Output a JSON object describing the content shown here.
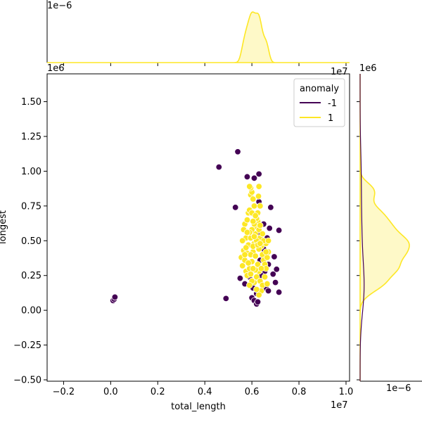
{
  "chart_data": {
    "type": "scatter",
    "xlabel": "total_length",
    "ylabel": "longest",
    "xlim": [
      -2700000,
      10150000
    ],
    "ylim": [
      -510000,
      1700000
    ],
    "x_ticks": [
      -2000000,
      0,
      2000000,
      4000000,
      6000000,
      8000000,
      10000000
    ],
    "x_tick_labels": [
      "−0.2",
      "0.0",
      "0.2",
      "0.4",
      "0.6",
      "0.8",
      "1.0"
    ],
    "x_offset_label": "1e7",
    "y_ticks": [
      -500000,
      -250000,
      0,
      250000,
      500000,
      750000,
      1000000,
      1250000,
      1500000
    ],
    "y_tick_labels": [
      "−0.50",
      "−0.25",
      "0.00",
      "0.25",
      "0.50",
      "0.75",
      "1.00",
      "1.25",
      "1.50"
    ],
    "y_offset_label": "1e6",
    "top_marginal_offset_label": "1e−6",
    "top_marginal_axis_offset_label": "1e7",
    "right_marginal_offset_label": "1e6",
    "right_marginal_axis_offset_label": "1e−6",
    "legend": {
      "title": "anomaly",
      "placement": "top-right",
      "entries": [
        {
          "label": "-1",
          "color": "#440154"
        },
        {
          "label": "1",
          "color": "#fde725"
        }
      ]
    },
    "series": [
      {
        "name": "-1",
        "color": "#440154",
        "points": [
          [
            100000,
            70000
          ],
          [
            150000,
            80000
          ],
          [
            180000,
            95000
          ],
          [
            4600000,
            1030000
          ],
          [
            5400000,
            1140000
          ],
          [
            5800000,
            960000
          ],
          [
            6100000,
            950000
          ],
          [
            6300000,
            980000
          ],
          [
            6300000,
            780000
          ],
          [
            6800000,
            740000
          ],
          [
            5300000,
            740000
          ],
          [
            6500000,
            620000
          ],
          [
            6750000,
            590000
          ],
          [
            7150000,
            575000
          ],
          [
            6300000,
            540000
          ],
          [
            6650000,
            520000
          ],
          [
            5500000,
            230000
          ],
          [
            4900000,
            85000
          ],
          [
            6000000,
            90000
          ],
          [
            6100000,
            70000
          ],
          [
            6200000,
            45000
          ],
          [
            6250000,
            60000
          ],
          [
            6600000,
            160000
          ],
          [
            7150000,
            130000
          ],
          [
            6700000,
            140000
          ],
          [
            7000000,
            200000
          ],
          [
            6900000,
            260000
          ],
          [
            7050000,
            295000
          ],
          [
            6950000,
            385000
          ],
          [
            6700000,
            330000
          ],
          [
            6550000,
            280000
          ],
          [
            6400000,
            250000
          ],
          [
            5900000,
            240000
          ],
          [
            5700000,
            190000
          ],
          [
            6050000,
            160000
          ],
          [
            6200000,
            120000
          ],
          [
            6350000,
            360000
          ],
          [
            6500000,
            440000
          ]
        ]
      },
      {
        "name": "1",
        "color": "#fde725",
        "points": [
          [
            5700000,
            620000
          ],
          [
            5800000,
            650000
          ],
          [
            5850000,
            700000
          ],
          [
            5900000,
            720000
          ],
          [
            5950000,
            830000
          ],
          [
            6000000,
            850000
          ],
          [
            5950000,
            880000
          ],
          [
            5900000,
            890000
          ],
          [
            6050000,
            800000
          ],
          [
            6300000,
            890000
          ],
          [
            6280000,
            820000
          ],
          [
            6350000,
            750000
          ],
          [
            6250000,
            700000
          ],
          [
            5750000,
            520000
          ],
          [
            5600000,
            500000
          ],
          [
            5650000,
            430000
          ],
          [
            5550000,
            380000
          ],
          [
            5600000,
            320000
          ],
          [
            5750000,
            280000
          ],
          [
            5800000,
            250000
          ],
          [
            5900000,
            300000
          ],
          [
            6000000,
            350000
          ],
          [
            6050000,
            420000
          ],
          [
            6100000,
            480000
          ],
          [
            6150000,
            550000
          ],
          [
            6200000,
            600000
          ],
          [
            6250000,
            640000
          ],
          [
            6300000,
            580000
          ],
          [
            6350000,
            520000
          ],
          [
            6400000,
            460000
          ],
          [
            6450000,
            400000
          ],
          [
            6500000,
            360000
          ],
          [
            6550000,
            330000
          ],
          [
            6600000,
            300000
          ],
          [
            6650000,
            380000
          ],
          [
            6700000,
            420000
          ],
          [
            6600000,
            480000
          ],
          [
            6500000,
            500000
          ],
          [
            6450000,
            550000
          ],
          [
            6350000,
            610000
          ],
          [
            6200000,
            660000
          ],
          [
            6100000,
            620000
          ],
          [
            6000000,
            580000
          ],
          [
            5950000,
            520000
          ],
          [
            5850000,
            470000
          ],
          [
            5800000,
            410000
          ],
          [
            5700000,
            360000
          ],
          [
            5850000,
            340000
          ],
          [
            5950000,
            400000
          ],
          [
            6050000,
            460000
          ],
          [
            6150000,
            390000
          ],
          [
            6250000,
            330000
          ],
          [
            6300000,
            280000
          ],
          [
            6200000,
            240000
          ],
          [
            6100000,
            200000
          ],
          [
            6000000,
            210000
          ],
          [
            5950000,
            260000
          ],
          [
            6150000,
            290000
          ],
          [
            6350000,
            210000
          ],
          [
            6450000,
            180000
          ],
          [
            6400000,
            140000
          ],
          [
            6300000,
            110000
          ],
          [
            6200000,
            150000
          ],
          [
            6050000,
            300000
          ],
          [
            5900000,
            560000
          ],
          [
            6550000,
            240000
          ],
          [
            6650000,
            190000
          ],
          [
            5650000,
            580000
          ],
          [
            6700000,
            500000
          ],
          [
            5750000,
            450000
          ],
          [
            6000000,
            700000
          ],
          [
            6100000,
            750000
          ],
          [
            6200000,
            500000
          ],
          [
            6300000,
            440000
          ],
          [
            6400000,
            300000
          ],
          [
            5900000,
            180000
          ],
          [
            6100000,
            530000
          ],
          [
            6250000,
            470000
          ],
          [
            5800000,
            560000
          ],
          [
            6050000,
            640000
          ],
          [
            6150000,
            680000
          ],
          [
            5700000,
            400000
          ],
          [
            6600000,
            420000
          ],
          [
            6350000,
            480000
          ]
        ]
      }
    ]
  }
}
